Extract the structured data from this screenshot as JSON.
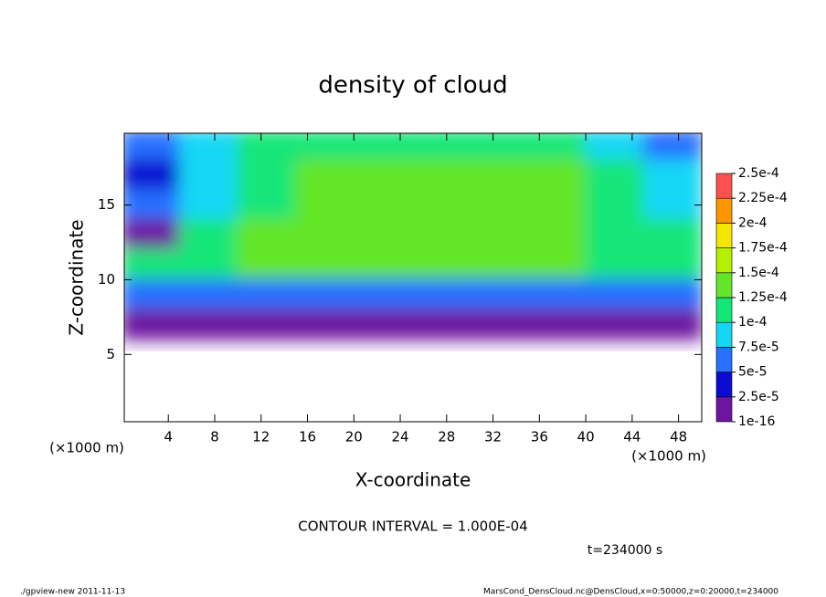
{
  "chart_data": {
    "type": "heatmap",
    "title": "density of cloud",
    "x_label": "X-coordinate",
    "y_label": "Z-coordinate",
    "x_unit": "(×1000 m)",
    "y_unit": "(×1000 m)",
    "xlim": [
      0.2,
      50
    ],
    "xticks": [
      4,
      8,
      12,
      16,
      20,
      24,
      28,
      32,
      36,
      40,
      44,
      48
    ],
    "ylim": [
      0.5,
      19.8
    ],
    "yticks": [
      5,
      10,
      15
    ],
    "field": {
      "x": [
        2.5,
        7.5,
        12.5,
        17.5,
        22.5,
        27.5,
        32.5,
        37.5,
        42.5,
        47.5
      ],
      "y": [
        19,
        17,
        15,
        13,
        11,
        9,
        7,
        5,
        3,
        1
      ],
      "values": [
        [
          6e-05,
          8e-05,
          0.0001,
          0.00011,
          0.00011,
          0.00011,
          0.00011,
          0.0001,
          8e-05,
          5e-05
        ],
        [
          4e-05,
          9e-05,
          0.00012,
          0.00013,
          0.000135,
          0.000135,
          0.000135,
          0.00013,
          0.00012,
          8e-05
        ],
        [
          5e-05,
          8e-05,
          0.00012,
          0.000135,
          0.00014,
          0.00014,
          0.00014,
          0.000135,
          0.00012,
          9e-05
        ],
        [
          1e-05,
          0.0001,
          0.00013,
          0.000145,
          0.00014,
          0.00014,
          0.00014,
          0.00013,
          0.00012,
          0.00011
        ],
        [
          0.00011,
          0.00012,
          0.000125,
          0.00013,
          0.00013,
          0.00013,
          0.000125,
          0.000125,
          0.00012,
          0.000115
        ],
        [
          6e-05,
          6e-05,
          7e-05,
          7e-05,
          6.5e-05,
          7e-05,
          7e-05,
          6.5e-05,
          6e-05,
          6e-05
        ],
        [
          1e-05,
          1e-05,
          1e-05,
          1e-05,
          1e-05,
          1e-05,
          1e-05,
          1e-05,
          1e-05,
          1e-05
        ],
        [
          null,
          null,
          null,
          null,
          null,
          null,
          null,
          null,
          null,
          null
        ],
        [
          null,
          null,
          null,
          null,
          null,
          null,
          null,
          null,
          null,
          null
        ],
        [
          null,
          null,
          null,
          null,
          null,
          null,
          null,
          null,
          null,
          null
        ]
      ]
    },
    "colorbar": {
      "levels": [
        {
          "value": 1e-16,
          "label": "1e-16"
        },
        {
          "value": 2.5e-05,
          "label": "2.5e-5"
        },
        {
          "value": 5e-05,
          "label": "5e-5"
        },
        {
          "value": 7.5e-05,
          "label": "7.5e-5"
        },
        {
          "value": 0.0001,
          "label": "1e-4"
        },
        {
          "value": 0.000125,
          "label": "1.25e-4"
        },
        {
          "value": 0.00015,
          "label": "1.5e-4"
        },
        {
          "value": 0.000175,
          "label": "1.75e-4"
        },
        {
          "value": 0.0002,
          "label": "2e-4"
        },
        {
          "value": 0.000225,
          "label": "2.25e-4"
        },
        {
          "value": 0.00025,
          "label": "2.5e-4"
        }
      ],
      "colors": [
        "#6e14a0",
        "#0a0ad2",
        "#2870ff",
        "#14d7f5",
        "#14e678",
        "#64e628",
        "#b4f000",
        "#f5e600",
        "#ff9600",
        "#ff5050"
      ]
    },
    "contour_interval": "CONTOUR INTERVAL = 1.000E-04",
    "time": "t=234000 s",
    "footer_left": "./gpview-new  2011-11-13",
    "footer_right": "MarsCond_DensCloud.nc@DensCloud,x=0:50000,z=0:20000,t=234000"
  }
}
